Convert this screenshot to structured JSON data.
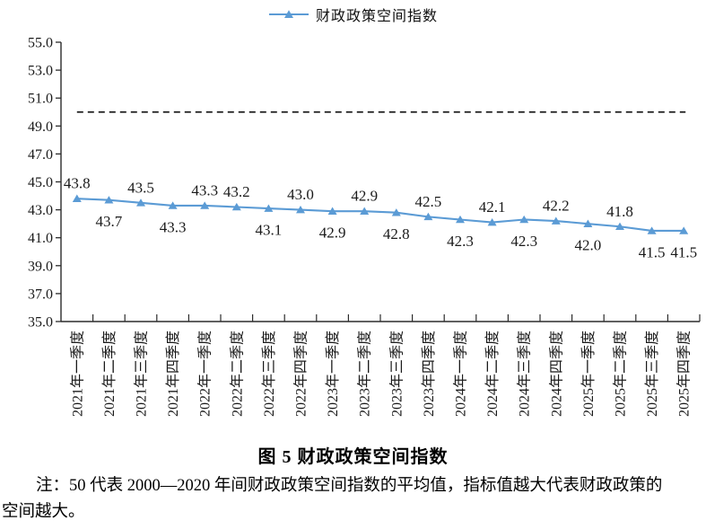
{
  "legend": {
    "label": "财政政策空间指数"
  },
  "caption": "图 5 财政政策空间指数",
  "note": {
    "lines": [
      "注：50 代表 2000—2020 年间财政政策空间指数的平均值，指标值越大代表财政政策的",
      "空间越大。"
    ]
  },
  "colors": {
    "series": "#5B9BD5",
    "reference_line": "#1a1a1a",
    "axis": "#2b2b2b",
    "text": "#1a1a1a"
  },
  "chart_data": {
    "type": "line",
    "title": "财政政策空间指数",
    "legend_position": "top",
    "grid": false,
    "ylim": [
      35.0,
      55.0
    ],
    "ytick_step": 2.0,
    "ytick_format_decimals": 1,
    "categories": [
      "2021年一季度",
      "2021年二季度",
      "2021年三季度",
      "2021年四季度",
      "2022年一季度",
      "2022年二季度",
      "2022年三季度",
      "2022年四季度",
      "2023年一季度",
      "2023年二季度",
      "2023年三季度",
      "2023年四季度",
      "2024年一季度",
      "2024年二季度",
      "2024年三季度",
      "2024年四季度",
      "2025年一季度",
      "2025年二季度",
      "2025年三季度",
      "2025年四季度"
    ],
    "series": [
      {
        "name": "财政政策空间指数",
        "marker": "triangle",
        "values": [
          43.8,
          43.7,
          43.5,
          43.3,
          43.3,
          43.2,
          43.1,
          43.0,
          42.9,
          42.9,
          42.8,
          42.5,
          42.3,
          42.1,
          42.3,
          42.2,
          42.0,
          41.8,
          41.5,
          41.5
        ],
        "label_positions": [
          "above",
          "below",
          "above",
          "below",
          "above",
          "above",
          "below",
          "above",
          "below",
          "above",
          "below",
          "above",
          "below",
          "above",
          "below",
          "above",
          "below",
          "above",
          "below",
          "below"
        ]
      }
    ],
    "reference_line": {
      "value": 50.0,
      "style": "dashed"
    }
  }
}
